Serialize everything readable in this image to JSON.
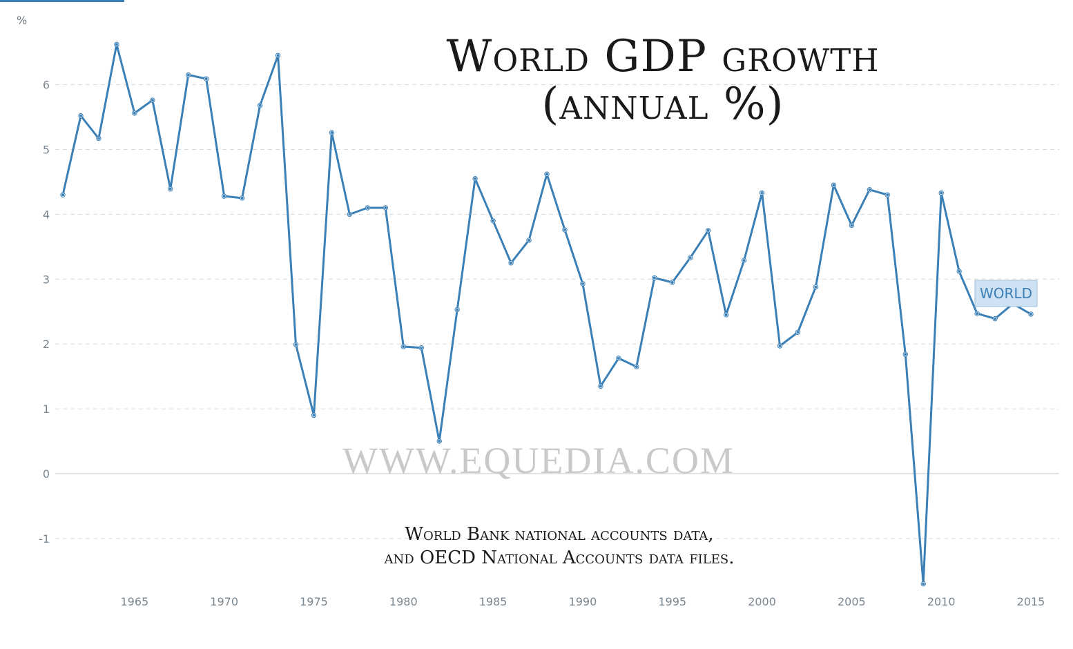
{
  "header": {
    "unit": "%"
  },
  "title": {
    "line1": "World GDP growth",
    "line2": "(annual %)"
  },
  "watermark": "WWW.EQUEDIA.COM",
  "source": {
    "line1": "World Bank national accounts data,",
    "line2": "and OECD National Accounts data files."
  },
  "colors": {
    "line": "#3a7fb5",
    "grid": "#d9d9d9",
    "axis": "#c6d3dc",
    "tick_text": "#7a8690",
    "series_label_bg": "#cfe2f3"
  },
  "chart_data": {
    "type": "line",
    "title": "World GDP growth (annual %)",
    "xlabel": "",
    "ylabel": "%",
    "xlim": [
      1961,
      2015
    ],
    "ylim": [
      -1.7,
      6.9
    ],
    "yticks": [
      -1,
      0,
      1,
      2,
      3,
      4,
      5,
      6
    ],
    "xticks": [
      1965,
      1970,
      1975,
      1980,
      1985,
      1990,
      1995,
      2000,
      2005,
      2010,
      2015
    ],
    "grid": true,
    "series_label_position": "right end",
    "x": [
      1961,
      1962,
      1963,
      1964,
      1965,
      1966,
      1967,
      1968,
      1969,
      1970,
      1971,
      1972,
      1973,
      1974,
      1975,
      1976,
      1977,
      1978,
      1979,
      1980,
      1981,
      1982,
      1983,
      1984,
      1985,
      1986,
      1987,
      1988,
      1989,
      1990,
      1991,
      1992,
      1993,
      1994,
      1995,
      1996,
      1997,
      1998,
      1999,
      2000,
      2001,
      2002,
      2003,
      2004,
      2005,
      2006,
      2007,
      2008,
      2009,
      2010,
      2011,
      2012,
      2013,
      2014,
      2015
    ],
    "series": [
      {
        "name": "WORLD",
        "values": [
          4.3,
          5.52,
          5.17,
          6.62,
          5.56,
          5.76,
          4.39,
          6.15,
          6.09,
          4.28,
          4.25,
          5.68,
          6.45,
          1.99,
          0.9,
          5.26,
          4.0,
          4.1,
          4.1,
          1.96,
          1.94,
          0.5,
          2.53,
          4.55,
          3.9,
          3.25,
          3.6,
          4.62,
          3.76,
          2.93,
          1.35,
          1.78,
          1.65,
          3.02,
          2.95,
          3.33,
          3.75,
          2.45,
          3.29,
          4.33,
          1.97,
          2.18,
          2.88,
          4.45,
          3.83,
          4.38,
          4.3,
          1.84,
          -1.7,
          4.33,
          3.12,
          2.47,
          2.39,
          2.62,
          2.46
        ]
      }
    ]
  }
}
